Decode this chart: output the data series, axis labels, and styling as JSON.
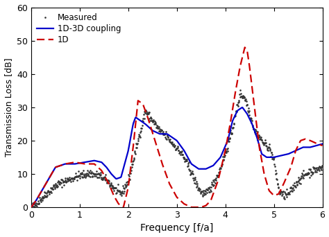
{
  "xlabel": "Frequency [f/a]",
  "ylabel": "Transmission Loss [dB]",
  "xlim": [
    0,
    6
  ],
  "ylim": [
    0,
    60
  ],
  "xticks": [
    0,
    1,
    2,
    3,
    4,
    5,
    6
  ],
  "yticks": [
    0,
    10,
    20,
    30,
    40,
    50,
    60
  ],
  "legend": [
    "Measured",
    "1D-3D coupling",
    "1D"
  ],
  "measured_color": "#333333",
  "coupling_color": "#0000cc",
  "oned_color": "#cc0000",
  "background_color": "#ffffff",
  "figsize": [
    4.74,
    3.42
  ],
  "dpi": 100
}
